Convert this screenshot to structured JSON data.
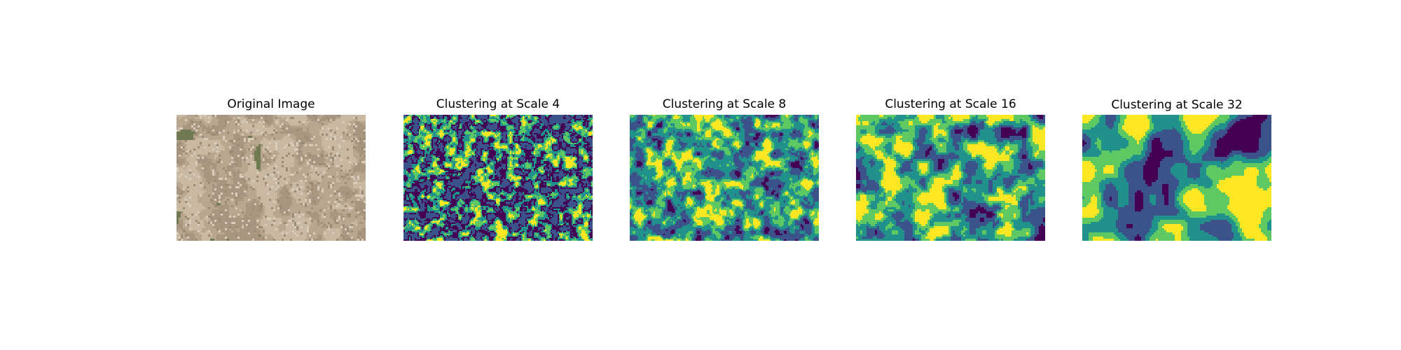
{
  "figure": {
    "panels": [
      {
        "title": "Original Image",
        "kind": "photo"
      },
      {
        "title": "Clustering at Scale 4",
        "kind": "cluster",
        "scale": 4
      },
      {
        "title": "Clustering at Scale 8",
        "kind": "cluster",
        "scale": 8
      },
      {
        "title": "Clustering at Scale 16",
        "kind": "cluster",
        "scale": 16
      },
      {
        "title": "Clustering at Scale 32",
        "kind": "cluster",
        "scale": 32
      }
    ],
    "cluster_colors": [
      "#440154",
      "#3b528b",
      "#21918c",
      "#5ec962",
      "#fde725"
    ],
    "photo_colors": [
      "#b8a68e",
      "#c9b9a3",
      "#a89680",
      "#d9cdbd",
      "#9a8c74",
      "#6f7a52"
    ]
  }
}
